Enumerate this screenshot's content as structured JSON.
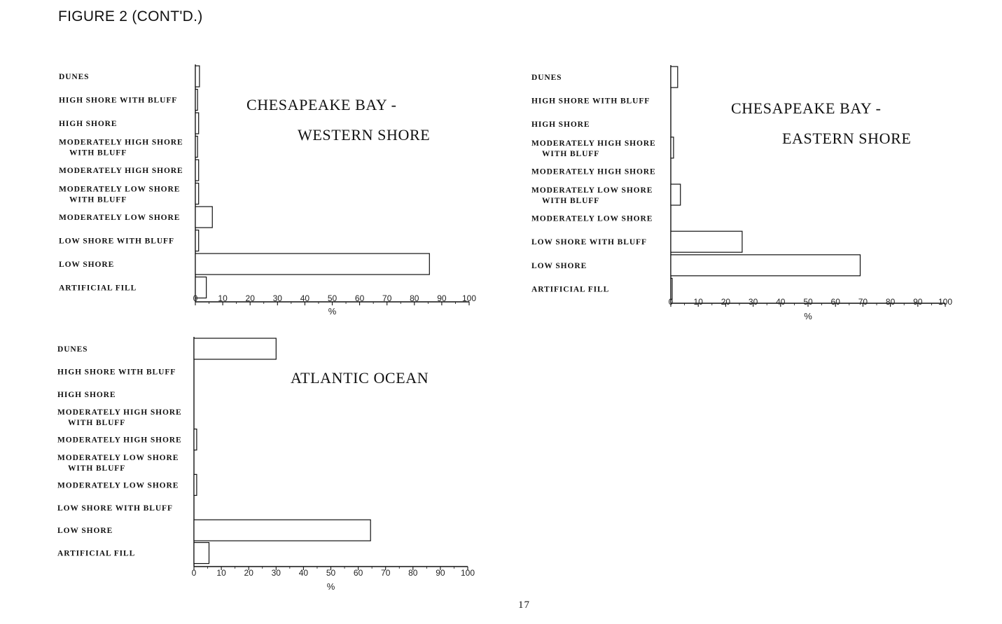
{
  "page": {
    "figure_title": "FIGURE 2 (CONT'D.)",
    "page_number": "17"
  },
  "chart_data": [
    {
      "type": "bar",
      "orientation": "horizontal",
      "title_lines": [
        "CHESAPEAKE BAY -",
        "WESTERN SHORE"
      ],
      "categories": [
        [
          "DUNES"
        ],
        [
          "HIGH SHORE WITH BLUFF"
        ],
        [
          "HIGH SHORE"
        ],
        [
          "MODERATELY HIGH SHORE",
          "WITH BLUFF"
        ],
        [
          "MODERATELY HIGH SHORE"
        ],
        [
          "MODERATELY LOW SHORE",
          "WITH BLUFF"
        ],
        [
          "MODERATELY LOW SHORE"
        ],
        [
          "LOW SHORE WITH BLUFF"
        ],
        [
          "LOW SHORE"
        ],
        [
          "ARTIFICIAL FILL"
        ]
      ],
      "values": [
        1.5,
        0.8,
        1.2,
        0.8,
        1.2,
        1.2,
        6.2,
        1.2,
        85.5,
        4.0
      ],
      "xlim": [
        0,
        100
      ],
      "xticks": [
        0,
        10,
        20,
        30,
        40,
        50,
        60,
        70,
        80,
        90,
        100
      ],
      "xlabel": "%"
    },
    {
      "type": "bar",
      "orientation": "horizontal",
      "title_lines": [
        "CHESAPEAKE BAY -",
        "EASTERN SHORE"
      ],
      "categories": [
        [
          "DUNES"
        ],
        [
          "HIGH SHORE WITH BLUFF"
        ],
        [
          "HIGH SHORE"
        ],
        [
          "MODERATELY HIGH SHORE",
          "WITH BLUFF"
        ],
        [
          "MODERATELY HIGH SHORE"
        ],
        [
          "MODERATELY LOW SHORE",
          "WITH BLUFF"
        ],
        [
          "MODERATELY LOW SHORE"
        ],
        [
          "LOW SHORE WITH BLUFF"
        ],
        [
          "LOW SHORE"
        ],
        [
          "ARTIFICIAL FILL"
        ]
      ],
      "values": [
        2.5,
        0,
        0,
        1.0,
        0,
        3.5,
        0,
        26.0,
        69.0,
        0.5
      ],
      "xlim": [
        0,
        100
      ],
      "xticks": [
        0,
        10,
        20,
        30,
        40,
        50,
        60,
        70,
        80,
        90,
        100
      ],
      "xlabel": "%"
    },
    {
      "type": "bar",
      "orientation": "horizontal",
      "title_lines": [
        "ATLANTIC OCEAN"
      ],
      "categories": [
        [
          "DUNES"
        ],
        [
          "HIGH SHORE WITH BLUFF"
        ],
        [
          "HIGH SHORE"
        ],
        [
          "MODERATELY HIGH SHORE",
          "WITH BLUFF"
        ],
        [
          "MODERATELY HIGH SHORE"
        ],
        [
          "MODERATELY LOW SHORE",
          "WITH BLUFF"
        ],
        [
          "MODERATELY LOW SHORE"
        ],
        [
          "LOW SHORE WITH BLUFF"
        ],
        [
          "LOW SHORE"
        ],
        [
          "ARTIFICIAL FILL"
        ]
      ],
      "values": [
        30.0,
        0,
        0,
        0,
        1.0,
        0,
        1.0,
        0,
        64.5,
        5.5
      ],
      "xlim": [
        0,
        100
      ],
      "xticks": [
        0,
        10,
        20,
        30,
        40,
        50,
        60,
        70,
        80,
        90,
        100
      ],
      "xlabel": "%"
    }
  ]
}
